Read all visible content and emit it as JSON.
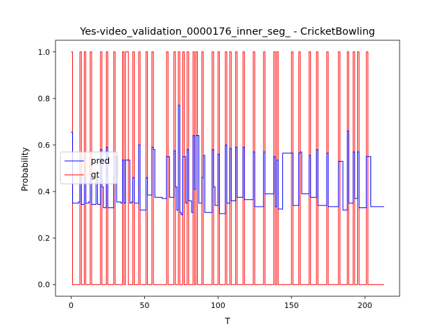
{
  "chart_data": {
    "type": "line",
    "title": "Yes-video_validation_0000176_inner_seg_ - CricketBowling",
    "xlabel": "T",
    "ylabel": "Probability",
    "xlim": [
      -10.6,
      223.6
    ],
    "ylim": [
      -0.05,
      1.05
    ],
    "xticks": [
      0,
      50,
      100,
      150,
      200
    ],
    "yticks": [
      0.0,
      0.2,
      0.4,
      0.6,
      0.8,
      1.0
    ],
    "ytick_labels": [
      "0.0",
      "0.2",
      "0.4",
      "0.6",
      "0.8",
      "1.0"
    ],
    "grid": false,
    "legend_position": "center-left",
    "colors": {
      "pred": "#0000ff",
      "gt": "#ff0000"
    },
    "series": [
      {
        "name": "pred",
        "color": "#0000ff",
        "step": true,
        "points": [
          [
            0,
            0.655
          ],
          [
            1,
            0.35
          ],
          [
            2,
            0.35
          ],
          [
            3,
            0.35
          ],
          [
            4,
            0.35
          ],
          [
            5,
            0.355
          ],
          [
            6,
            0.46
          ],
          [
            7,
            0.345
          ],
          [
            8,
            0.345
          ],
          [
            9,
            0.46
          ],
          [
            10,
            0.35
          ],
          [
            11,
            0.35
          ],
          [
            12,
            0.355
          ],
          [
            13,
            0.46
          ],
          [
            14,
            0.345
          ],
          [
            15,
            0.345
          ],
          [
            16,
            0.345
          ],
          [
            17,
            0.46
          ],
          [
            18,
            0.345
          ],
          [
            19,
            0.345
          ],
          [
            20,
            0.58
          ],
          [
            21,
            0.42
          ],
          [
            22,
            0.33
          ],
          [
            23,
            0.33
          ],
          [
            24,
            0.59
          ],
          [
            25,
            0.33
          ],
          [
            26,
            0.33
          ],
          [
            27,
            0.33
          ],
          [
            28,
            0.33
          ],
          [
            29,
            0.46
          ],
          [
            30,
            0.55
          ],
          [
            31,
            0.355
          ],
          [
            32,
            0.355
          ],
          [
            33,
            0.355
          ],
          [
            34,
            0.35
          ],
          [
            35,
            0.535
          ],
          [
            36,
            0.35
          ],
          [
            37,
            0.535
          ],
          [
            38,
            0.535
          ],
          [
            39,
            0.535
          ],
          [
            40,
            0.35
          ],
          [
            41,
            0.355
          ],
          [
            42,
            0.46
          ],
          [
            43,
            0.35
          ],
          [
            44,
            0.35
          ],
          [
            45,
            0.35
          ],
          [
            46,
            0.6
          ],
          [
            47,
            0.32
          ],
          [
            48,
            0.32
          ],
          [
            49,
            0.32
          ],
          [
            50,
            0.32
          ],
          [
            51,
            0.46
          ],
          [
            52,
            0.385
          ],
          [
            53,
            0.385
          ],
          [
            54,
            0.385
          ],
          [
            55,
            0.59
          ],
          [
            56,
            0.58
          ],
          [
            57,
            0.375
          ],
          [
            58,
            0.375
          ],
          [
            59,
            0.375
          ],
          [
            60,
            0.375
          ],
          [
            61,
            0.375
          ],
          [
            62,
            0.37
          ],
          [
            63,
            0.37
          ],
          [
            64,
            0.37
          ],
          [
            65,
            0.55
          ],
          [
            66,
            0.55
          ],
          [
            67,
            0.375
          ],
          [
            68,
            0.375
          ],
          [
            69,
            0.375
          ],
          [
            70,
            0.575
          ],
          [
            71,
            0.42
          ],
          [
            72,
            0.32
          ],
          [
            73,
            0.77
          ],
          [
            74,
            0.31
          ],
          [
            75,
            0.3
          ],
          [
            76,
            0.55
          ],
          [
            77,
            0.55
          ],
          [
            78,
            0.35
          ],
          [
            79,
            0.58
          ],
          [
            80,
            0.36
          ],
          [
            81,
            0.36
          ],
          [
            82,
            0.31
          ],
          [
            83,
            0.64
          ],
          [
            84,
            0.41
          ],
          [
            85,
            0.64
          ],
          [
            86,
            0.64
          ],
          [
            87,
            0.35
          ],
          [
            88,
            0.35
          ],
          [
            89,
            0.46
          ],
          [
            90,
            0.555
          ],
          [
            91,
            0.31
          ],
          [
            92,
            0.31
          ],
          [
            93,
            0.31
          ],
          [
            94,
            0.31
          ],
          [
            95,
            0.31
          ],
          [
            96,
            0.58
          ],
          [
            97,
            0.42
          ],
          [
            98,
            0.34
          ],
          [
            99,
            0.34
          ],
          [
            100,
            0.56
          ],
          [
            101,
            0.305
          ],
          [
            102,
            0.305
          ],
          [
            103,
            0.305
          ],
          [
            104,
            0.305
          ],
          [
            105,
            0.6
          ],
          [
            106,
            0.35
          ],
          [
            107,
            0.35
          ],
          [
            108,
            0.585
          ],
          [
            109,
            0.36
          ],
          [
            110,
            0.36
          ],
          [
            111,
            0.36
          ],
          [
            112,
            0.59
          ],
          [
            113,
            0.375
          ],
          [
            114,
            0.375
          ],
          [
            115,
            0.375
          ],
          [
            116,
            0.375
          ],
          [
            117,
            0.59
          ],
          [
            118,
            0.365
          ],
          [
            119,
            0.365
          ],
          [
            120,
            0.365
          ],
          [
            121,
            0.365
          ],
          [
            122,
            0.365
          ],
          [
            123,
            0.365
          ],
          [
            124,
            0.57
          ],
          [
            125,
            0.335
          ],
          [
            126,
            0.335
          ],
          [
            127,
            0.335
          ],
          [
            128,
            0.335
          ],
          [
            129,
            0.335
          ],
          [
            130,
            0.335
          ],
          [
            131,
            0.57
          ],
          [
            132,
            0.39
          ],
          [
            133,
            0.39
          ],
          [
            134,
            0.39
          ],
          [
            135,
            0.39
          ],
          [
            136,
            0.39
          ],
          [
            137,
            0.39
          ],
          [
            138,
            0.55
          ],
          [
            139,
            0.335
          ],
          [
            140,
            0.535
          ],
          [
            141,
            0.325
          ],
          [
            142,
            0.325
          ],
          [
            143,
            0.325
          ],
          [
            144,
            0.565
          ],
          [
            145,
            0.565
          ],
          [
            146,
            0.565
          ],
          [
            147,
            0.565
          ],
          [
            148,
            0.565
          ],
          [
            149,
            0.565
          ],
          [
            150,
            0.565
          ],
          [
            151,
            0.34
          ],
          [
            152,
            0.34
          ],
          [
            153,
            0.34
          ],
          [
            154,
            0.34
          ],
          [
            155,
            0.565
          ],
          [
            156,
            0.57
          ],
          [
            157,
            0.39
          ],
          [
            158,
            0.39
          ],
          [
            159,
            0.39
          ],
          [
            160,
            0.39
          ],
          [
            161,
            0.39
          ],
          [
            162,
            0.555
          ],
          [
            163,
            0.375
          ],
          [
            164,
            0.375
          ],
          [
            165,
            0.375
          ],
          [
            166,
            0.375
          ],
          [
            167,
            0.58
          ],
          [
            168,
            0.34
          ],
          [
            169,
            0.34
          ],
          [
            170,
            0.34
          ],
          [
            171,
            0.34
          ],
          [
            172,
            0.34
          ],
          [
            173,
            0.34
          ],
          [
            174,
            0.565
          ],
          [
            175,
            0.335
          ],
          [
            176,
            0.335
          ],
          [
            177,
            0.335
          ],
          [
            178,
            0.335
          ],
          [
            179,
            0.335
          ],
          [
            180,
            0.335
          ],
          [
            181,
            0.335
          ],
          [
            182,
            0.53
          ],
          [
            183,
            0.53
          ],
          [
            184,
            0.53
          ],
          [
            185,
            0.32
          ],
          [
            186,
            0.32
          ],
          [
            187,
            0.32
          ],
          [
            188,
            0.66
          ],
          [
            189,
            0.35
          ],
          [
            190,
            0.35
          ],
          [
            191,
            0.35
          ],
          [
            192,
            0.57
          ],
          [
            193,
            0.37
          ],
          [
            194,
            0.37
          ],
          [
            195,
            0.57
          ],
          [
            196,
            0.33
          ],
          [
            197,
            0.33
          ],
          [
            198,
            0.33
          ],
          [
            199,
            0.33
          ],
          [
            200,
            0.33
          ],
          [
            201,
            0.55
          ],
          [
            202,
            0.55
          ],
          [
            203,
            0.55
          ],
          [
            204,
            0.335
          ],
          [
            205,
            0.335
          ],
          [
            206,
            0.335
          ],
          [
            207,
            0.335
          ],
          [
            208,
            0.335
          ],
          [
            209,
            0.335
          ],
          [
            210,
            0.335
          ],
          [
            211,
            0.335
          ],
          [
            212,
            0.335
          ],
          [
            213,
            0.335
          ]
        ]
      },
      {
        "name": "gt",
        "color": "#ff0000",
        "step": true,
        "segments_high": [
          [
            0,
            1
          ],
          [
            6,
            7
          ],
          [
            9,
            10
          ],
          [
            13,
            14
          ],
          [
            20,
            21
          ],
          [
            24,
            25
          ],
          [
            29,
            30
          ],
          [
            35,
            36
          ],
          [
            37,
            39
          ],
          [
            42,
            43
          ],
          [
            46,
            47
          ],
          [
            51,
            52
          ],
          [
            55,
            56
          ],
          [
            65,
            66
          ],
          [
            70,
            71
          ],
          [
            73,
            74
          ],
          [
            76,
            77
          ],
          [
            79,
            80
          ],
          [
            83,
            84
          ],
          [
            85,
            86
          ],
          [
            89,
            90
          ],
          [
            96,
            97
          ],
          [
            100,
            101
          ],
          [
            105,
            106
          ],
          [
            108,
            109
          ],
          [
            112,
            113
          ],
          [
            117,
            118
          ],
          [
            124,
            125
          ],
          [
            131,
            132
          ],
          [
            138,
            139
          ],
          [
            140,
            141
          ],
          [
            150,
            151
          ],
          [
            155,
            156
          ],
          [
            162,
            163
          ],
          [
            167,
            168
          ],
          [
            174,
            175
          ],
          [
            182,
            183
          ],
          [
            188,
            189
          ],
          [
            192,
            193
          ],
          [
            195,
            196
          ],
          [
            201,
            202
          ]
        ],
        "x_end": 213
      }
    ]
  }
}
